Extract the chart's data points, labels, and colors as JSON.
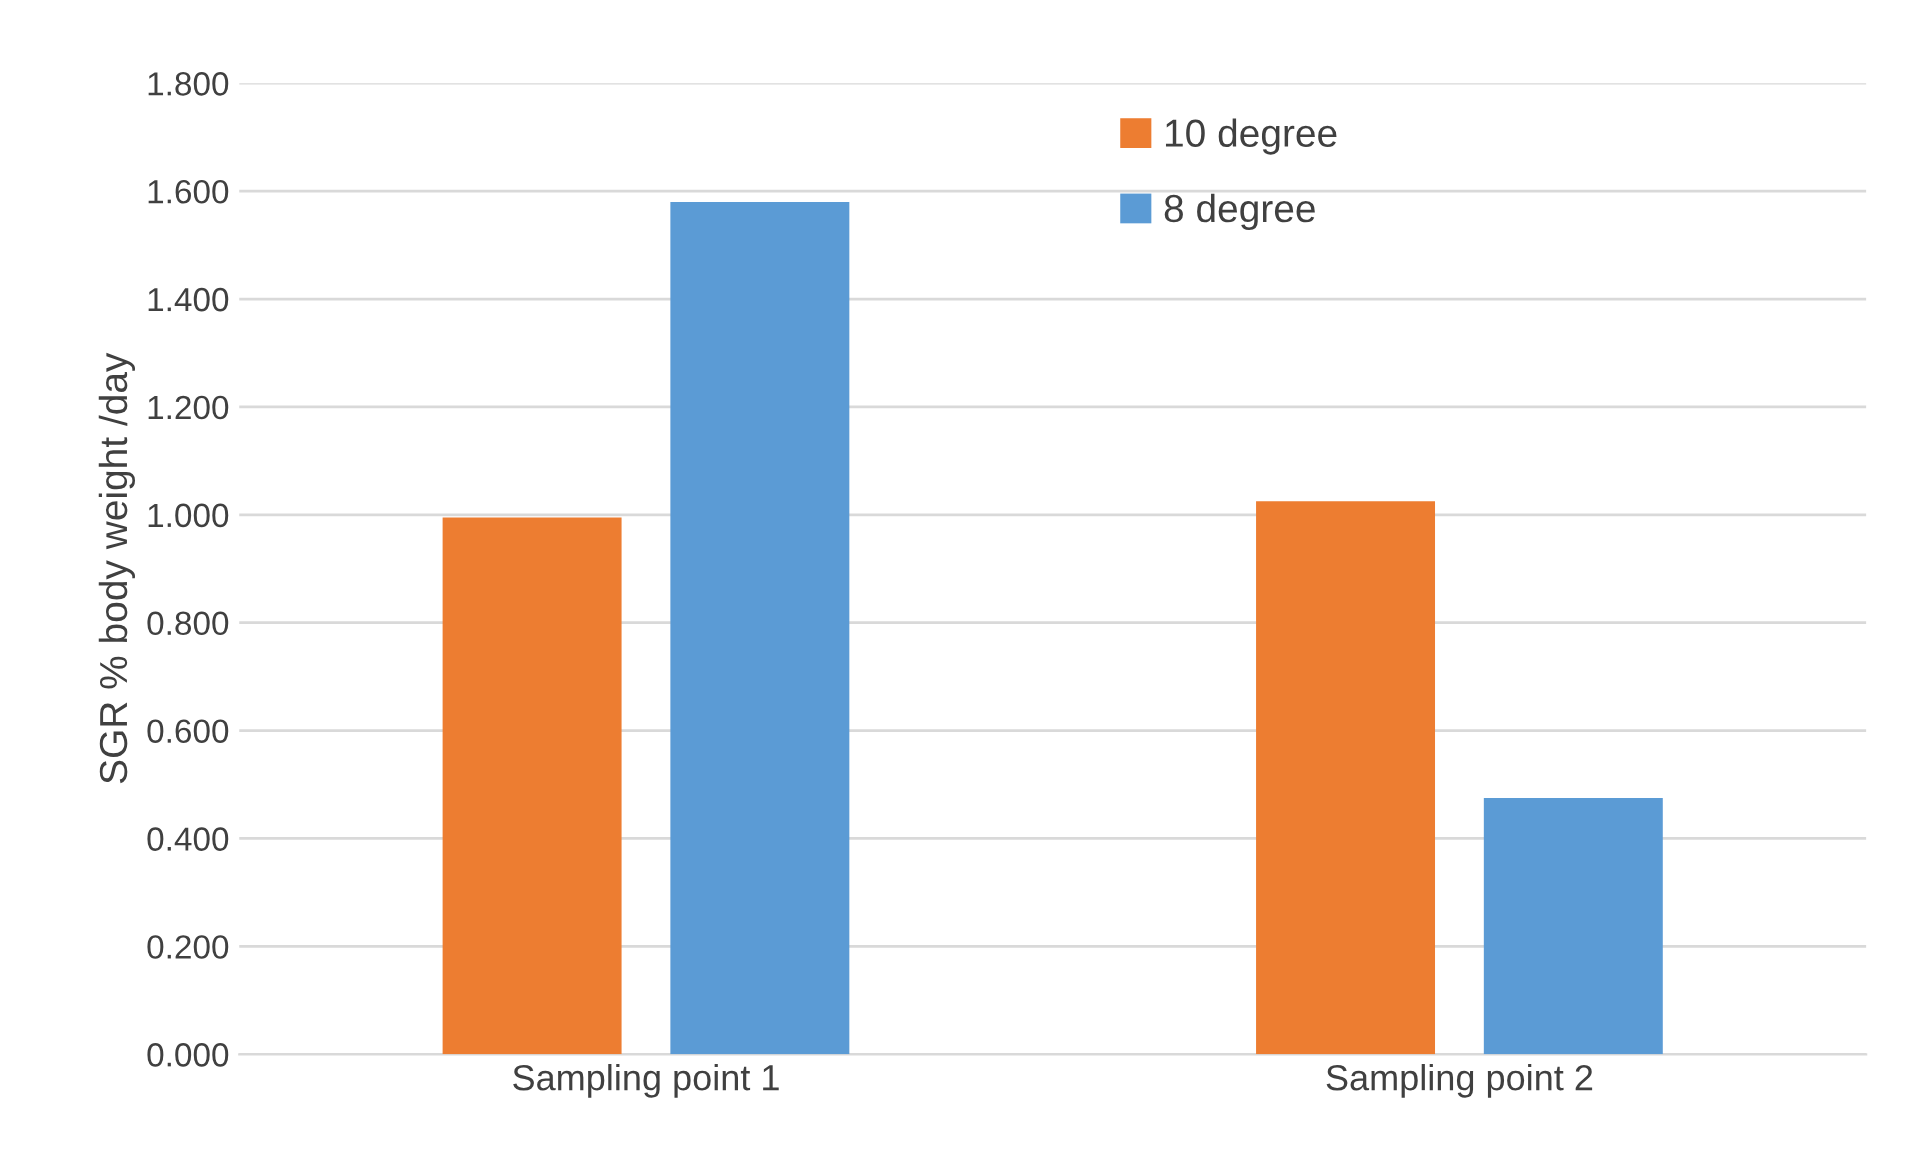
{
  "chart_data": {
    "type": "bar",
    "ylabel": "SGR % body weight /day",
    "categories": [
      "Sampling point 1",
      "Sampling point 2"
    ],
    "series": [
      {
        "name": "10 degree",
        "color": "#ed7d31",
        "values": [
          0.995,
          1.025
        ]
      },
      {
        "name": "8 degree",
        "color": "#5b9bd5",
        "values": [
          1.58,
          0.475
        ]
      }
    ],
    "ylim": [
      0,
      1.8
    ],
    "yticks": [
      {
        "value": 0,
        "label": "0.000"
      },
      {
        "value": 0.2,
        "label": "0.200"
      },
      {
        "value": 0.4,
        "label": "0.400"
      },
      {
        "value": 0.6,
        "label": "0.600"
      },
      {
        "value": 0.8,
        "label": "0.800"
      },
      {
        "value": 1.0,
        "label": "1.000"
      },
      {
        "value": 1.2,
        "label": "1.200"
      },
      {
        "value": 1.4,
        "label": "1.400"
      },
      {
        "value": 1.6,
        "label": "1.600"
      },
      {
        "value": 1.8,
        "label": "1.800"
      }
    ],
    "grid": "y",
    "legend": "top right"
  }
}
